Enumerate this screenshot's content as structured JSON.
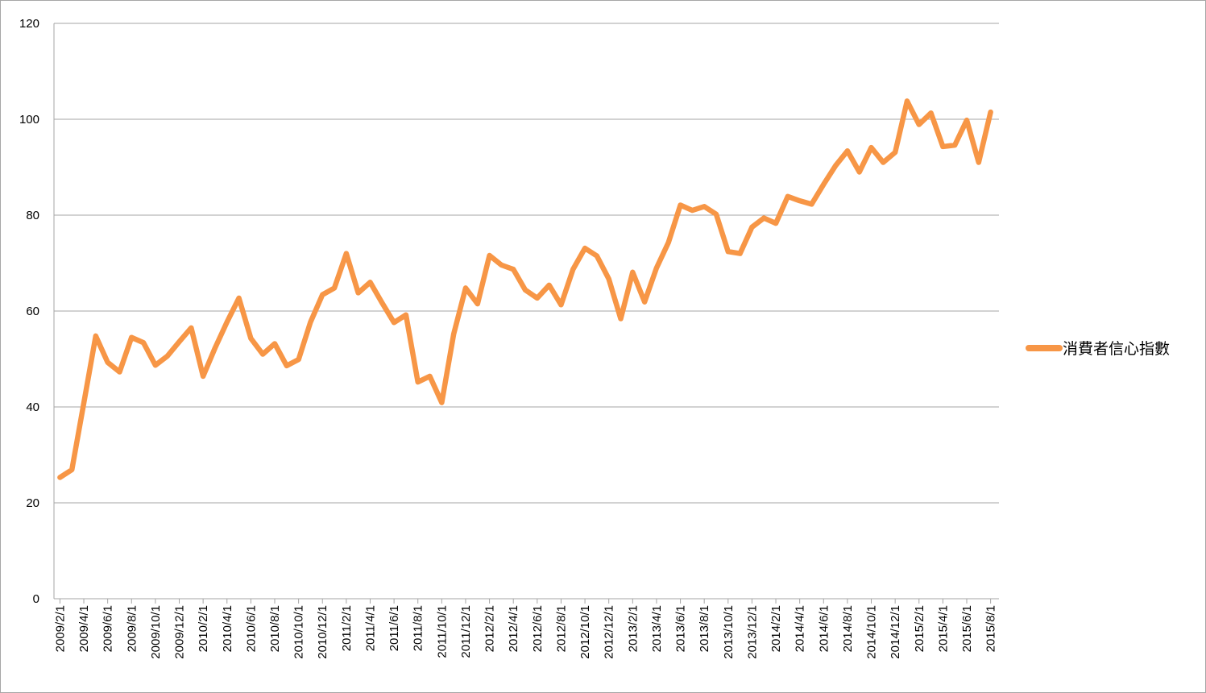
{
  "chart_data": {
    "type": "line",
    "ylim": [
      0,
      120
    ],
    "yticks": [
      "0",
      "20",
      "40",
      "60",
      "80",
      "100",
      "120"
    ],
    "grid": true,
    "legend_position": "right",
    "line_color": "#f79646",
    "tick_labels": [
      "2009/2/1",
      "2009/4/1",
      "2009/6/1",
      "2009/8/1",
      "2009/10/1",
      "2009/12/1",
      "2010/2/1",
      "2010/4/1",
      "2010/6/1",
      "2010/8/1",
      "2010/10/1",
      "2010/12/1",
      "2011/2/1",
      "2011/4/1",
      "2011/6/1",
      "2011/8/1",
      "2011/10/1",
      "2011/12/1",
      "2012/2/1",
      "2012/4/1",
      "2012/6/1",
      "2012/8/1",
      "2012/10/1",
      "2012/12/1",
      "2013/2/1",
      "2013/4/1",
      "2013/6/1",
      "2013/8/1",
      "2013/10/1",
      "2013/12/1",
      "2014/2/1",
      "2014/4/1",
      "2014/6/1",
      "2014/8/1",
      "2014/10/1",
      "2014/12/1",
      "2015/2/1",
      "2015/4/1",
      "2015/6/1",
      "2015/8/1"
    ],
    "x": [
      "2009/2/1",
      "2009/3/1",
      "2009/4/1",
      "2009/5/1",
      "2009/6/1",
      "2009/7/1",
      "2009/8/1",
      "2009/9/1",
      "2009/10/1",
      "2009/11/1",
      "2009/12/1",
      "2010/1/1",
      "2010/2/1",
      "2010/3/1",
      "2010/4/1",
      "2010/5/1",
      "2010/6/1",
      "2010/7/1",
      "2010/8/1",
      "2010/9/1",
      "2010/10/1",
      "2010/11/1",
      "2010/12/1",
      "2011/1/1",
      "2011/2/1",
      "2011/3/1",
      "2011/4/1",
      "2011/5/1",
      "2011/6/1",
      "2011/7/1",
      "2011/8/1",
      "2011/9/1",
      "2011/10/1",
      "2011/11/1",
      "2011/12/1",
      "2012/1/1",
      "2012/2/1",
      "2012/3/1",
      "2012/4/1",
      "2012/5/1",
      "2012/6/1",
      "2012/7/1",
      "2012/8/1",
      "2012/9/1",
      "2012/10/1",
      "2012/11/1",
      "2012/12/1",
      "2013/1/1",
      "2013/2/1",
      "2013/3/1",
      "2013/4/1",
      "2013/5/1",
      "2013/6/1",
      "2013/7/1",
      "2013/8/1",
      "2013/9/1",
      "2013/10/1",
      "2013/11/1",
      "2013/12/1",
      "2014/1/1",
      "2014/2/1",
      "2014/3/1",
      "2014/4/1",
      "2014/5/1",
      "2014/6/1",
      "2014/7/1",
      "2014/8/1",
      "2014/9/1",
      "2014/10/1",
      "2014/11/1",
      "2014/12/1",
      "2015/1/1",
      "2015/2/1",
      "2015/3/1",
      "2015/4/1",
      "2015/5/1",
      "2015/6/1",
      "2015/7/1",
      "2015/8/1"
    ],
    "series": [
      {
        "name": "消費者信心指數",
        "values": [
          25.3,
          26.9,
          40.8,
          54.8,
          49.3,
          47.3,
          54.5,
          53.4,
          48.7,
          50.6,
          53.6,
          56.5,
          46.4,
          52.3,
          57.7,
          62.7,
          54.3,
          51.0,
          53.2,
          48.6,
          49.9,
          57.7,
          63.4,
          64.8,
          72.0,
          63.8,
          66.0,
          61.7,
          57.6,
          59.2,
          45.2,
          46.4,
          40.9,
          55.2,
          64.8,
          61.5,
          71.6,
          69.6,
          68.7,
          64.4,
          62.7,
          65.4,
          61.3,
          68.7,
          73.1,
          71.5,
          66.7,
          58.4,
          68.1,
          61.9,
          69.0,
          74.3,
          82.1,
          81.0,
          81.8,
          80.2,
          72.4,
          72.0,
          77.5,
          79.4,
          78.3,
          83.9,
          83.0,
          82.3,
          86.4,
          90.3,
          93.4,
          89.0,
          94.1,
          91.0,
          93.1,
          103.8,
          98.9,
          101.3,
          94.3,
          94.6,
          99.8,
          91.0,
          101.5
        ]
      }
    ]
  }
}
